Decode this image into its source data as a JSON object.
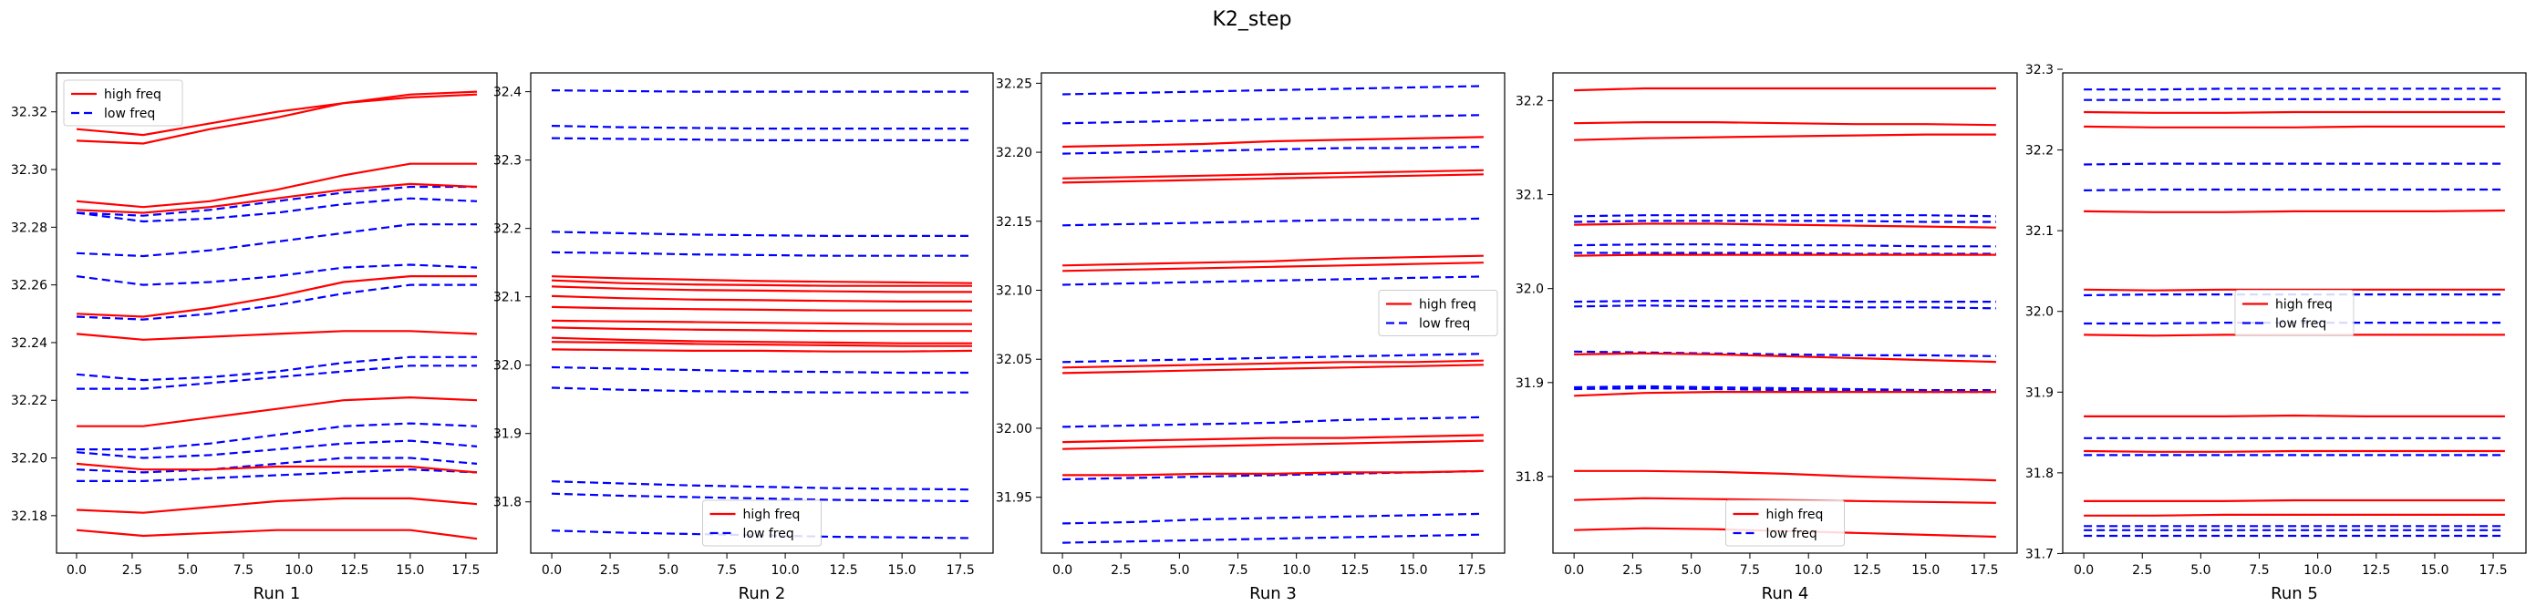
{
  "figure": {
    "title": "K2_step"
  },
  "colors": {
    "high": "#ff0000",
    "low": "#0000ff"
  },
  "chart_data": [
    {
      "type": "line",
      "xlabel": "Run 1",
      "xlim": [
        -0.9,
        18.9
      ],
      "ylim": [
        32.167,
        32.3335
      ],
      "xticks": [
        "0.0",
        "2.5",
        "5.0",
        "7.5",
        "10.0",
        "12.5",
        "15.0",
        "17.5"
      ],
      "yticks": [
        "32.18",
        "32.20",
        "32.22",
        "32.24",
        "32.26",
        "32.28",
        "32.30",
        "32.32"
      ],
      "legend": {
        "position": "upper-left",
        "high_label": "high freq",
        "low_label": "low freq"
      },
      "x": [
        0,
        3,
        6,
        9,
        12,
        15,
        18
      ],
      "high": [
        [
          32.314,
          32.312,
          32.316,
          32.32,
          32.323,
          32.326,
          32.327
        ],
        [
          32.31,
          32.309,
          32.314,
          32.318,
          32.323,
          32.325,
          32.326
        ],
        [
          32.289,
          32.287,
          32.289,
          32.293,
          32.298,
          32.302,
          32.302
        ],
        [
          32.286,
          32.285,
          32.287,
          32.29,
          32.293,
          32.295,
          32.294
        ],
        [
          32.25,
          32.249,
          32.252,
          32.256,
          32.261,
          32.263,
          32.263
        ],
        [
          32.243,
          32.241,
          32.242,
          32.243,
          32.244,
          32.244,
          32.243
        ],
        [
          32.211,
          32.211,
          32.214,
          32.217,
          32.22,
          32.221,
          32.22
        ],
        [
          32.198,
          32.196,
          32.196,
          32.197,
          32.197,
          32.197,
          32.195
        ],
        [
          32.182,
          32.181,
          32.183,
          32.185,
          32.186,
          32.186,
          32.184
        ],
        [
          32.175,
          32.173,
          32.174,
          32.175,
          32.175,
          32.175,
          32.172
        ]
      ],
      "low": [
        [
          32.285,
          32.284,
          32.286,
          32.289,
          32.292,
          32.294,
          32.294
        ],
        [
          32.285,
          32.282,
          32.283,
          32.285,
          32.288,
          32.29,
          32.289
        ],
        [
          32.271,
          32.27,
          32.272,
          32.275,
          32.278,
          32.281,
          32.281
        ],
        [
          32.263,
          32.26,
          32.261,
          32.263,
          32.266,
          32.267,
          32.266
        ],
        [
          32.249,
          32.248,
          32.25,
          32.253,
          32.257,
          32.26,
          32.26
        ],
        [
          32.229,
          32.227,
          32.228,
          32.23,
          32.233,
          32.235,
          32.235
        ],
        [
          32.224,
          32.224,
          32.226,
          32.228,
          32.23,
          32.232,
          32.232
        ],
        [
          32.203,
          32.203,
          32.205,
          32.208,
          32.211,
          32.212,
          32.211
        ],
        [
          32.202,
          32.2,
          32.201,
          32.203,
          32.205,
          32.206,
          32.204
        ],
        [
          32.196,
          32.195,
          32.196,
          32.198,
          32.2,
          32.2,
          32.198
        ],
        [
          32.192,
          32.192,
          32.193,
          32.194,
          32.195,
          32.196,
          32.195
        ]
      ]
    },
    {
      "type": "line",
      "xlabel": "Run 2",
      "xlim": [
        -0.9,
        18.9
      ],
      "ylim": [
        31.725,
        32.4275
      ],
      "xticks": [
        "0.0",
        "2.5",
        "5.0",
        "7.5",
        "10.0",
        "12.5",
        "15.0",
        "17.5"
      ],
      "yticks": [
        "31.8",
        "31.9",
        "32.0",
        "32.1",
        "32.2",
        "32.3",
        "32.4"
      ],
      "legend": {
        "position": "lower-center",
        "high_label": "high freq",
        "low_label": "low freq"
      },
      "x": [
        0,
        3,
        6,
        9,
        12,
        15,
        18
      ],
      "high": [
        [
          32.13,
          32.127,
          32.125,
          32.123,
          32.122,
          32.121,
          32.12
        ],
        [
          32.124,
          32.12,
          32.118,
          32.117,
          32.116,
          32.116,
          32.116
        ],
        [
          32.115,
          32.112,
          32.11,
          32.109,
          32.108,
          32.107,
          32.107
        ],
        [
          32.101,
          32.098,
          32.096,
          32.095,
          32.094,
          32.093,
          32.093
        ],
        [
          32.085,
          32.083,
          32.082,
          32.081,
          32.08,
          32.08,
          32.08
        ],
        [
          32.065,
          32.064,
          32.063,
          32.062,
          32.061,
          32.06,
          32.06
        ],
        [
          32.055,
          32.053,
          32.052,
          32.051,
          32.05,
          32.05,
          32.05
        ],
        [
          32.04,
          32.037,
          32.035,
          32.034,
          32.033,
          32.032,
          32.032
        ],
        [
          32.034,
          32.033,
          32.031,
          32.03,
          32.029,
          32.028,
          32.028
        ],
        [
          32.023,
          32.022,
          32.021,
          32.021,
          32.02,
          32.02,
          32.021
        ]
      ],
      "low": [
        [
          32.402,
          32.401,
          32.4,
          32.4,
          32.4,
          32.4,
          32.4
        ],
        [
          32.35,
          32.348,
          32.347,
          32.346,
          32.346,
          32.346,
          32.346
        ],
        [
          32.332,
          32.331,
          32.33,
          32.329,
          32.329,
          32.329,
          32.329
        ],
        [
          32.195,
          32.193,
          32.191,
          32.19,
          32.189,
          32.189,
          32.189
        ],
        [
          32.165,
          32.164,
          32.162,
          32.161,
          32.16,
          32.16,
          32.16
        ],
        [
          31.997,
          31.995,
          31.993,
          31.991,
          31.99,
          31.989,
          31.989
        ],
        [
          31.967,
          31.964,
          31.962,
          31.961,
          31.96,
          31.96,
          31.96
        ],
        [
          31.83,
          31.827,
          31.824,
          31.822,
          31.82,
          31.819,
          31.818
        ],
        [
          31.812,
          31.809,
          31.807,
          31.805,
          31.803,
          31.802,
          31.801
        ],
        [
          31.758,
          31.755,
          31.753,
          31.751,
          31.749,
          31.748,
          31.747
        ]
      ]
    },
    {
      "type": "line",
      "xlabel": "Run 3",
      "xlim": [
        -0.9,
        18.9
      ],
      "ylim": [
        31.9095,
        32.2575
      ],
      "xticks": [
        "0.0",
        "2.5",
        "5.0",
        "7.5",
        "10.0",
        "12.5",
        "15.0",
        "17.5"
      ],
      "yticks": [
        "31.95",
        "32.00",
        "32.05",
        "32.10",
        "32.15",
        "32.20",
        "32.25"
      ],
      "legend": {
        "position": "center-right",
        "high_label": "high freq",
        "low_label": "low freq"
      },
      "x": [
        0,
        3,
        6,
        9,
        12,
        15,
        18
      ],
      "high": [
        [
          32.204,
          32.205,
          32.206,
          32.208,
          32.209,
          32.21,
          32.211
        ],
        [
          32.181,
          32.182,
          32.183,
          32.184,
          32.185,
          32.186,
          32.187
        ],
        [
          32.178,
          32.179,
          32.18,
          32.181,
          32.182,
          32.183,
          32.184
        ],
        [
          32.118,
          32.119,
          32.12,
          32.121,
          32.123,
          32.124,
          32.125
        ],
        [
          32.114,
          32.115,
          32.116,
          32.117,
          32.118,
          32.119,
          32.12
        ],
        [
          32.044,
          32.045,
          32.046,
          32.047,
          32.048,
          32.048,
          32.049
        ],
        [
          32.04,
          32.041,
          32.042,
          32.043,
          32.044,
          32.045,
          32.046
        ],
        [
          31.99,
          31.991,
          31.992,
          31.993,
          31.993,
          31.994,
          31.995
        ],
        [
          31.985,
          31.986,
          31.987,
          31.988,
          31.989,
          31.99,
          31.991
        ],
        [
          31.966,
          31.966,
          31.967,
          31.967,
          31.968,
          31.968,
          31.969
        ]
      ],
      "low": [
        [
          32.242,
          32.243,
          32.244,
          32.245,
          32.246,
          32.247,
          32.248
        ],
        [
          32.221,
          32.222,
          32.223,
          32.224,
          32.225,
          32.226,
          32.227
        ],
        [
          32.199,
          32.2,
          32.201,
          32.202,
          32.203,
          32.203,
          32.204
        ],
        [
          32.147,
          32.148,
          32.149,
          32.15,
          32.151,
          32.151,
          32.152
        ],
        [
          32.104,
          32.105,
          32.106,
          32.107,
          32.108,
          32.109,
          32.11
        ],
        [
          32.048,
          32.049,
          32.05,
          32.051,
          32.052,
          32.053,
          32.054
        ],
        [
          32.001,
          32.002,
          32.003,
          32.004,
          32.006,
          32.007,
          32.008
        ],
        [
          31.963,
          31.964,
          31.965,
          31.966,
          31.967,
          31.968,
          31.969
        ],
        [
          31.931,
          31.932,
          31.934,
          31.935,
          31.936,
          31.937,
          31.938
        ],
        [
          31.917,
          31.918,
          31.919,
          31.92,
          31.921,
          31.922,
          31.923
        ]
      ]
    },
    {
      "type": "line",
      "xlabel": "Run 4",
      "xlim": [
        -0.9,
        18.9
      ],
      "ylim": [
        31.7185,
        32.2295
      ],
      "xticks": [
        "0.0",
        "2.5",
        "5.0",
        "7.5",
        "10.0",
        "12.5",
        "15.0",
        "17.5"
      ],
      "yticks": [
        "31.8",
        "31.9",
        "32.0",
        "32.1",
        "32.2"
      ],
      "legend": {
        "position": "lower-center",
        "high_label": "high freq",
        "low_label": "low freq"
      },
      "x": [
        0,
        3,
        6,
        9,
        12,
        15,
        18
      ],
      "high": [
        [
          32.211,
          32.213,
          32.213,
          32.213,
          32.213,
          32.213,
          32.213
        ],
        [
          32.176,
          32.177,
          32.177,
          32.176,
          32.175,
          32.175,
          32.174
        ],
        [
          32.158,
          32.16,
          32.161,
          32.162,
          32.163,
          32.164,
          32.164
        ],
        [
          32.068,
          32.069,
          32.069,
          32.068,
          32.067,
          32.066,
          32.065
        ],
        [
          32.035,
          32.036,
          32.036,
          32.036,
          32.036,
          32.036,
          32.036
        ],
        [
          31.93,
          31.931,
          31.93,
          31.928,
          31.926,
          31.924,
          31.922
        ],
        [
          31.886,
          31.889,
          31.89,
          31.89,
          31.89,
          31.89,
          31.89
        ],
        [
          31.806,
          31.806,
          31.805,
          31.803,
          31.8,
          31.798,
          31.796
        ],
        [
          31.775,
          31.777,
          31.776,
          31.775,
          31.774,
          31.773,
          31.772
        ],
        [
          31.743,
          31.745,
          31.744,
          31.742,
          31.74,
          31.738,
          31.736
        ]
      ],
      "low": [
        [
          32.077,
          32.078,
          32.078,
          32.078,
          32.078,
          32.078,
          32.077
        ],
        [
          32.071,
          32.072,
          32.072,
          32.072,
          32.072,
          32.071,
          32.071
        ],
        [
          32.046,
          32.047,
          32.047,
          32.046,
          32.046,
          32.045,
          32.045
        ],
        [
          32.038,
          32.038,
          32.038,
          32.038,
          32.037,
          32.037,
          32.037
        ],
        [
          31.986,
          31.987,
          31.987,
          31.987,
          31.986,
          31.986,
          31.986
        ],
        [
          31.981,
          31.982,
          31.981,
          31.981,
          31.98,
          31.98,
          31.979
        ],
        [
          31.933,
          31.932,
          31.931,
          31.93,
          31.929,
          31.929,
          31.928
        ],
        [
          31.895,
          31.896,
          31.895,
          31.894,
          31.893,
          31.892,
          31.892
        ],
        [
          31.893,
          31.894,
          31.893,
          31.892,
          31.891,
          31.89,
          31.89
        ]
      ]
    },
    {
      "type": "line",
      "xlabel": "Run 5",
      "xlim": [
        -0.9,
        18.9
      ],
      "ylim": [
        31.7005,
        32.2955
      ],
      "xticks": [
        "0.0",
        "2.5",
        "5.0",
        "7.5",
        "10.0",
        "12.5",
        "15.0",
        "17.5"
      ],
      "yticks": [
        "31.7",
        "31.8",
        "31.9",
        "32.0",
        "32.1",
        "32.2",
        "32.3"
      ],
      "legend": {
        "position": "center",
        "high_label": "high freq",
        "low_label": "low freq"
      },
      "x": [
        0,
        3,
        6,
        9,
        12,
        15,
        18
      ],
      "high": [
        [
          32.247,
          32.246,
          32.246,
          32.247,
          32.247,
          32.247,
          32.247
        ],
        [
          32.229,
          32.228,
          32.228,
          32.228,
          32.229,
          32.229,
          32.229
        ],
        [
          32.124,
          32.123,
          32.123,
          32.124,
          32.124,
          32.124,
          32.125
        ],
        [
          32.027,
          32.026,
          32.027,
          32.027,
          32.027,
          32.027,
          32.027
        ],
        [
          31.971,
          31.97,
          31.971,
          31.971,
          31.971,
          31.971,
          31.971
        ],
        [
          31.87,
          31.87,
          31.87,
          31.871,
          31.87,
          31.87,
          31.87
        ],
        [
          31.827,
          31.826,
          31.826,
          31.827,
          31.827,
          31.827,
          31.827
        ],
        [
          31.765,
          31.765,
          31.765,
          31.766,
          31.766,
          31.766,
          31.766
        ],
        [
          31.747,
          31.747,
          31.748,
          31.748,
          31.748,
          31.748,
          31.748
        ]
      ],
      "low": [
        [
          32.275,
          32.275,
          32.276,
          32.276,
          32.276,
          32.276,
          32.276
        ],
        [
          32.262,
          32.262,
          32.263,
          32.263,
          32.263,
          32.263,
          32.263
        ],
        [
          32.182,
          32.183,
          32.183,
          32.183,
          32.183,
          32.183,
          32.183
        ],
        [
          32.15,
          32.151,
          32.151,
          32.151,
          32.151,
          32.151,
          32.151
        ],
        [
          32.02,
          32.021,
          32.021,
          32.021,
          32.021,
          32.021,
          32.021
        ],
        [
          31.985,
          31.985,
          31.986,
          31.986,
          31.986,
          31.986,
          31.986
        ],
        [
          31.843,
          31.843,
          31.843,
          31.843,
          31.843,
          31.843,
          31.843
        ],
        [
          31.822,
          31.822,
          31.822,
          31.822,
          31.822,
          31.822,
          31.822
        ],
        [
          31.734,
          31.734,
          31.734,
          31.734,
          31.734,
          31.734,
          31.734
        ],
        [
          31.729,
          31.729,
          31.729,
          31.729,
          31.729,
          31.729,
          31.729
        ],
        [
          31.722,
          31.722,
          31.722,
          31.722,
          31.722,
          31.722,
          31.722
        ]
      ]
    }
  ]
}
